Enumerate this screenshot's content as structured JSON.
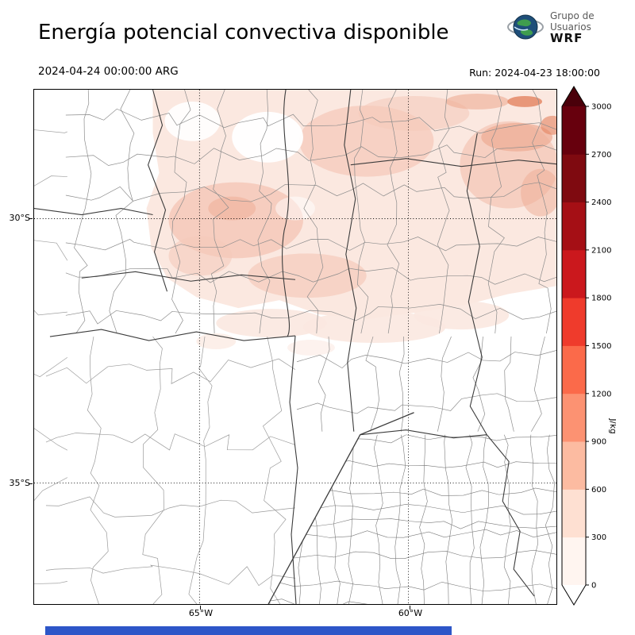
{
  "header": {
    "title": "Energía potencial convectiva disponible",
    "valid_time": "2024-04-24 00:00:00 ARG",
    "run_label": "Run: 2024-04-23 18:00:00",
    "logo": {
      "line1": "Grupo de",
      "line2": "Usuarios",
      "line3": "WRF"
    }
  },
  "map": {
    "y_ticks": {
      "t30": "30°S",
      "t35": "35°S"
    },
    "x_ticks": {
      "t65": "65°W",
      "t60": "60°W"
    }
  },
  "colorbar": {
    "unit": "J/kg",
    "ticks": [
      0,
      300,
      600,
      900,
      1200,
      1500,
      1800,
      2100,
      2400,
      2700,
      3000
    ],
    "colors_bottom_to_top": [
      "#fff5f0",
      "#fee0d2",
      "#fcbba1",
      "#fc9272",
      "#fb6a4a",
      "#ef3b2c",
      "#cb181d",
      "#a50f15",
      "#7f0a10",
      "#67000d"
    ],
    "over_color": "#4a000a",
    "under_color": "#ffffff"
  },
  "chart_data": {
    "type": "heatmap",
    "title": "Energía potencial convectiva disponible",
    "units": "J/kg",
    "levels": [
      0,
      300,
      600,
      900,
      1200,
      1500,
      1800,
      2100,
      2400,
      2700,
      3000
    ],
    "valid": "2024-04-24 00:00:00 ARG",
    "run": "2024-04-23 18:00:00",
    "lat_ticks": [
      "30°S",
      "35°S"
    ],
    "lon_ticks": [
      "65°W",
      "60°W"
    ],
    "legend_position": "right",
    "shade_colors_used": [
      "#fbe8e0",
      "#f5cabb",
      "#eeab93",
      "#e4825f"
    ],
    "notes": "Low CAPE shading (roughly 0-900 J/kg) over northern third of the domain; rest of map unshaded"
  },
  "footer": {
    "bar_color": "#2d56c8"
  }
}
